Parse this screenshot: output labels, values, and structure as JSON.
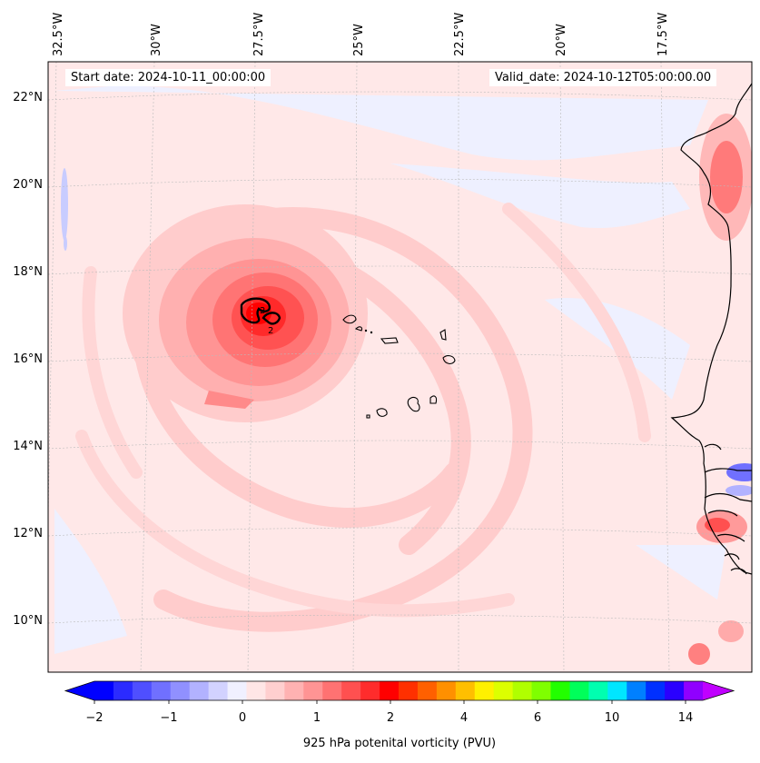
{
  "map": {
    "title_start": "Start date: 2024-10-11_00:00:00",
    "title_valid": "Valid_date: 2024-10-12T05:00:00.00",
    "lon_labels": [
      "32.5°W",
      "30°W",
      "27.5°W",
      "25°W",
      "22.5°W",
      "20°W",
      "17.5°W"
    ],
    "lat_labels": [
      "22°N",
      "20°N",
      "18°N",
      "16°N",
      "14°N",
      "12°N",
      "10°N"
    ],
    "contour_labels": [
      "2",
      "2"
    ]
  },
  "colorbar": {
    "label": "925 hPa potenital vorticity (PVU)",
    "ticks": [
      "−2",
      "−1",
      "0",
      "1",
      "2",
      "4",
      "6",
      "10",
      "14"
    ],
    "colors": [
      "#0000ff",
      "#2b2bff",
      "#4f4fff",
      "#7070ff",
      "#9090ff",
      "#b2b2ff",
      "#d2d2ff",
      "#f0f0ff",
      "#ffe6e6",
      "#ffcfcf",
      "#ffb2b2",
      "#ff9494",
      "#ff7272",
      "#ff5050",
      "#ff2c2c",
      "#ff0000",
      "#ff3000",
      "#ff6000",
      "#ff9000",
      "#ffbf00",
      "#fff000",
      "#dcff00",
      "#b0ff00",
      "#7fff00",
      "#22ff00",
      "#00ff5a",
      "#00ffb0",
      "#00e6ff",
      "#0080ff",
      "#0030ff",
      "#2a00ff",
      "#9000ff"
    ],
    "under_color": "#0000ff",
    "over_color": "#c000ff"
  }
}
